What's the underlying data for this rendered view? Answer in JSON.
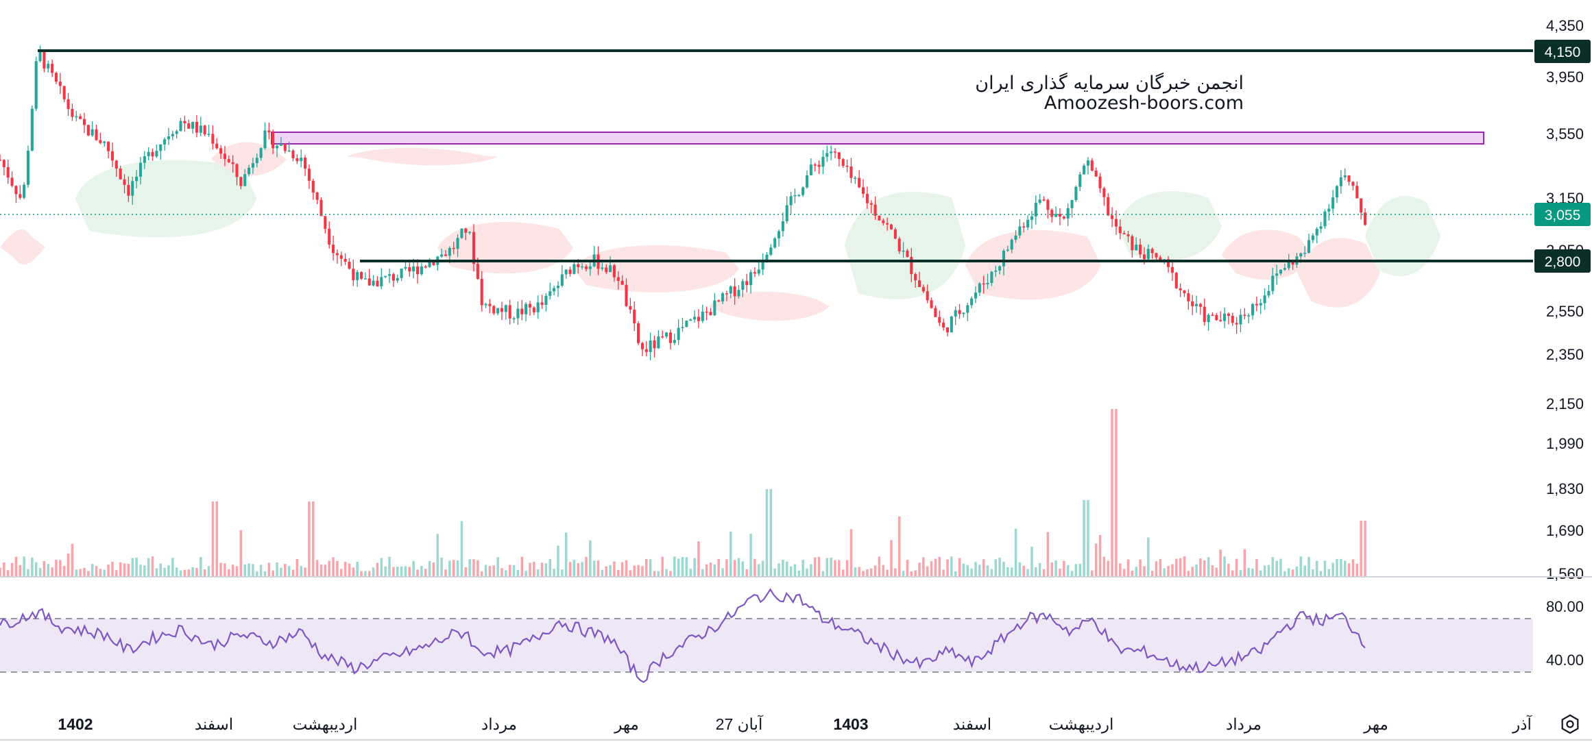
{
  "watermark": {
    "line1": "انجمن خبرگان سرمایه گذاری ایران",
    "line2": "Amoozesh-boors.com"
  },
  "colors": {
    "up": "#26a69a",
    "down": "#f23645",
    "level": "#0a2e28",
    "rsi": "#7e57c2",
    "rsi_band": "#ede7f6",
    "zone_fill": "#e9c6f0",
    "zone_stroke": "#9c27b0",
    "cloud_green": "#e6f4e9",
    "cloud_red": "#fde5e5",
    "last_price": "#089981"
  },
  "price_axis": {
    "labels": [
      "4,350",
      "3,950",
      "3,550",
      "3,150",
      "2,950",
      "2,550",
      "2,350",
      "2,150",
      "1,990",
      "1,830",
      "1,690",
      "1,560"
    ]
  },
  "badges": {
    "resistance": "4,150",
    "last_price": "3,055",
    "support": "2,800"
  },
  "rsi_axis": {
    "labels": [
      "80.00",
      "40.00"
    ]
  },
  "time_axis": {
    "labels": [
      {
        "text": "1402",
        "bold": true
      },
      {
        "text": "اسفند",
        "bold": false
      },
      {
        "text": "اردیبهشت",
        "bold": false
      },
      {
        "text": "مرداد",
        "bold": false
      },
      {
        "text": "مهر",
        "bold": false
      },
      {
        "text": "27 آبان",
        "bold": false
      },
      {
        "text": "1403",
        "bold": true
      },
      {
        "text": "اسفند",
        "bold": false
      },
      {
        "text": "اردیبهشت",
        "bold": false
      },
      {
        "text": "مرداد",
        "bold": false
      },
      {
        "text": "مهر",
        "bold": false
      },
      {
        "text": "آذر",
        "bold": false
      }
    ]
  },
  "chart_data": {
    "type": "candlestick",
    "price_levels": {
      "resistance": 4150,
      "support": 2800,
      "last": 3055
    },
    "resistance_zone": [
      3470,
      3570
    ],
    "price_range": [
      1560,
      4350
    ],
    "rsi": {
      "upper": 70,
      "lower": 30,
      "range": [
        10,
        100
      ]
    },
    "price_path": [
      [
        0,
        3450
      ],
      [
        0.015,
        3180
      ],
      [
        0.025,
        4150
      ],
      [
        0.05,
        3700
      ],
      [
        0.07,
        3550
      ],
      [
        0.085,
        3250
      ],
      [
        0.1,
        3500
      ],
      [
        0.12,
        3700
      ],
      [
        0.14,
        3600
      ],
      [
        0.16,
        3300
      ],
      [
        0.175,
        3600
      ],
      [
        0.2,
        3460
      ],
      [
        0.22,
        2900
      ],
      [
        0.24,
        2650
      ],
      [
        0.27,
        2720
      ],
      [
        0.3,
        2880
      ],
      [
        0.31,
        3020
      ],
      [
        0.32,
        2520
      ],
      [
        0.34,
        2460
      ],
      [
        0.36,
        2520
      ],
      [
        0.38,
        2780
      ],
      [
        0.395,
        2800
      ],
      [
        0.41,
        2700
      ],
      [
        0.425,
        2220
      ],
      [
        0.445,
        2320
      ],
      [
        0.47,
        2480
      ],
      [
        0.5,
        2720
      ],
      [
        0.52,
        3100
      ],
      [
        0.535,
        3350
      ],
      [
        0.55,
        3520
      ],
      [
        0.57,
        3250
      ],
      [
        0.59,
        3000
      ],
      [
        0.61,
        2650
      ],
      [
        0.625,
        2350
      ],
      [
        0.64,
        2520
      ],
      [
        0.66,
        2750
      ],
      [
        0.675,
        3000
      ],
      [
        0.69,
        3200
      ],
      [
        0.705,
        3050
      ],
      [
        0.72,
        3450
      ],
      [
        0.74,
        3000
      ],
      [
        0.755,
        2860
      ],
      [
        0.77,
        2800
      ],
      [
        0.79,
        2520
      ],
      [
        0.8,
        2430
      ],
      [
        0.82,
        2420
      ],
      [
        0.835,
        2550
      ],
      [
        0.85,
        2760
      ],
      [
        0.865,
        2850
      ],
      [
        0.875,
        3050
      ],
      [
        0.89,
        3350
      ],
      [
        0.9,
        3200
      ],
      [
        0.905,
        3055
      ]
    ],
    "rsi_series": [
      [
        0,
        65
      ],
      [
        0.025,
        75
      ],
      [
        0.04,
        64
      ],
      [
        0.07,
        58
      ],
      [
        0.085,
        46
      ],
      [
        0.1,
        55
      ],
      [
        0.12,
        62
      ],
      [
        0.14,
        50
      ],
      [
        0.16,
        58
      ],
      [
        0.18,
        52
      ],
      [
        0.2,
        60
      ],
      [
        0.215,
        42
      ],
      [
        0.235,
        33
      ],
      [
        0.255,
        40
      ],
      [
        0.28,
        48
      ],
      [
        0.3,
        58
      ],
      [
        0.31,
        60
      ],
      [
        0.315,
        46
      ],
      [
        0.335,
        45
      ],
      [
        0.355,
        55
      ],
      [
        0.37,
        68
      ],
      [
        0.39,
        60
      ],
      [
        0.405,
        55
      ],
      [
        0.425,
        24
      ],
      [
        0.44,
        42
      ],
      [
        0.46,
        55
      ],
      [
        0.48,
        68
      ],
      [
        0.5,
        86
      ],
      [
        0.515,
        88
      ],
      [
        0.53,
        85
      ],
      [
        0.545,
        70
      ],
      [
        0.565,
        60
      ],
      [
        0.59,
        45
      ],
      [
        0.61,
        35
      ],
      [
        0.63,
        46
      ],
      [
        0.645,
        36
      ],
      [
        0.665,
        55
      ],
      [
        0.68,
        70
      ],
      [
        0.695,
        72
      ],
      [
        0.71,
        60
      ],
      [
        0.725,
        70
      ],
      [
        0.74,
        47
      ],
      [
        0.76,
        45
      ],
      [
        0.78,
        35
      ],
      [
        0.8,
        33
      ],
      [
        0.82,
        40
      ],
      [
        0.835,
        45
      ],
      [
        0.85,
        62
      ],
      [
        0.865,
        73
      ],
      [
        0.875,
        68
      ],
      [
        0.89,
        72
      ],
      [
        0.905,
        52
      ]
    ]
  }
}
